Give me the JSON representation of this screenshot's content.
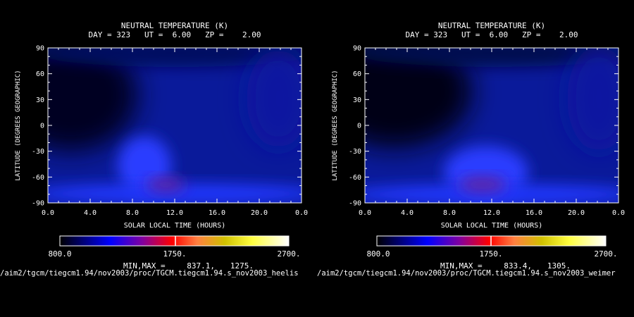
{
  "chart_data": [
    {
      "type": "heatmap",
      "title": "NEUTRAL TEMPERATURE (K)",
      "subtitle": "DAY = 323   UT =  6.00   ZP =    2.00",
      "xlabel": "SOLAR LOCAL TIME (HOURS)",
      "ylabel": "LATITUDE (DEGREES GEOGRAPHIC)",
      "xlim": [
        0,
        24
      ],
      "ylim": [
        -90,
        90
      ],
      "x_ticks": [
        "0.0",
        "4.0",
        "8.0",
        "12.0",
        "16.0",
        "20.0",
        "0.0"
      ],
      "y_ticks": [
        "90",
        "60",
        "30",
        "0",
        "-30",
        "-60",
        "-90"
      ],
      "colorbar": {
        "min_label": "800.0",
        "mid_label": "1750.",
        "max_label": "2700."
      },
      "minmax_label": "MIN,MAX =",
      "min_value": "837.1,",
      "max_value": "1275.",
      "source_path": "/aim2/tgcm/tiegcm1.94/nov2003/proc/TGCM.tiegcm1.94.s_nov2003_heelis"
    },
    {
      "type": "heatmap",
      "title": "NEUTRAL TEMPERATURE (K)",
      "subtitle": "DAY = 323   UT =  6.00   ZP =    2.00",
      "xlabel": "SOLAR LOCAL TIME (HOURS)",
      "ylabel": "LATITUDE (DEGREES GEOGRAPHIC)",
      "xlim": [
        0,
        24
      ],
      "ylim": [
        -90,
        90
      ],
      "x_ticks": [
        "0.0",
        "4.0",
        "8.0",
        "12.0",
        "16.0",
        "20.0",
        "0.0"
      ],
      "y_ticks": [
        "90",
        "60",
        "30",
        "0",
        "-30",
        "-60",
        "-90"
      ],
      "colorbar": {
        "min_label": "800.0",
        "mid_label": "1750.",
        "max_label": "2700."
      },
      "minmax_label": "MIN,MAX =",
      "min_value": "833.4,",
      "max_value": "1305.",
      "source_path": "/aim2/tgcm/tiegcm1.94/nov2003/proc/TGCM.tiegcm1.94.s_nov2003_weimer"
    }
  ],
  "colors": {
    "background": "#000000",
    "colormap": [
      "#000000",
      "#0000ff",
      "#a000a0",
      "#ff0000",
      "#ff8040",
      "#ffff00",
      "#ffffff"
    ]
  }
}
